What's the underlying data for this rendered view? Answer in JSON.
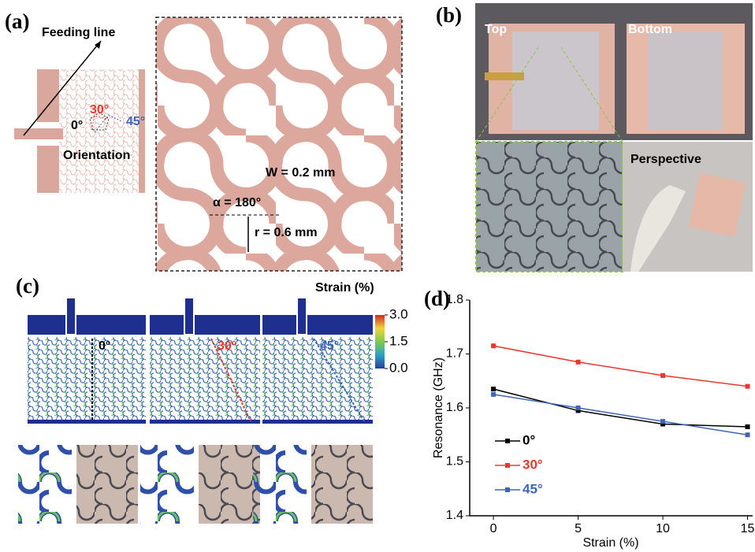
{
  "panels": {
    "a": {
      "label": "(a)",
      "feeding_line": "Feeding line",
      "angle_30": "30°",
      "angle_45": "45°",
      "angle_0": "0°",
      "orientation": "Orientation",
      "width": "W = 0.2 mm",
      "alpha": "α = 180°",
      "radius": "r = 0.6 mm"
    },
    "b": {
      "label": "(b)",
      "top": "Top",
      "bottom": "Bottom",
      "perspective": "Perspective"
    },
    "c": {
      "label": "(c)",
      "colorbar_title": "Strain (%)",
      "colorbar_lim": [
        0,
        3
      ],
      "colorbar_ticks": [
        {
          "value": 3,
          "label": "3.0"
        },
        {
          "value": 1.5,
          "label": "1.5"
        },
        {
          "value": 0,
          "label": "0.0"
        }
      ],
      "angles": [
        "0°",
        "30°",
        "45°"
      ]
    }
  },
  "chart_data": {
    "type": "line",
    "panel_label": "(d)",
    "x_label": "Strain (%)",
    "y_label": "Resonance (GHz)",
    "x": [
      0,
      5,
      10,
      15
    ],
    "series": [
      {
        "name": "0°",
        "color": "#000000",
        "values": [
          1.635,
          1.595,
          1.57,
          1.565
        ]
      },
      {
        "name": "30°",
        "color": "#e8382e",
        "values": [
          1.715,
          1.685,
          1.66,
          1.64
        ]
      },
      {
        "name": "45°",
        "color": "#3f63b5",
        "values": [
          1.625,
          1.6,
          1.575,
          1.55
        ]
      }
    ],
    "xlim": [
      -1.4,
      15.3
    ],
    "ylim": [
      1.4,
      1.8
    ],
    "xticks": [
      0,
      5,
      10,
      15
    ],
    "yticks": [
      1.4,
      1.5,
      1.6,
      1.7,
      1.8
    ]
  }
}
